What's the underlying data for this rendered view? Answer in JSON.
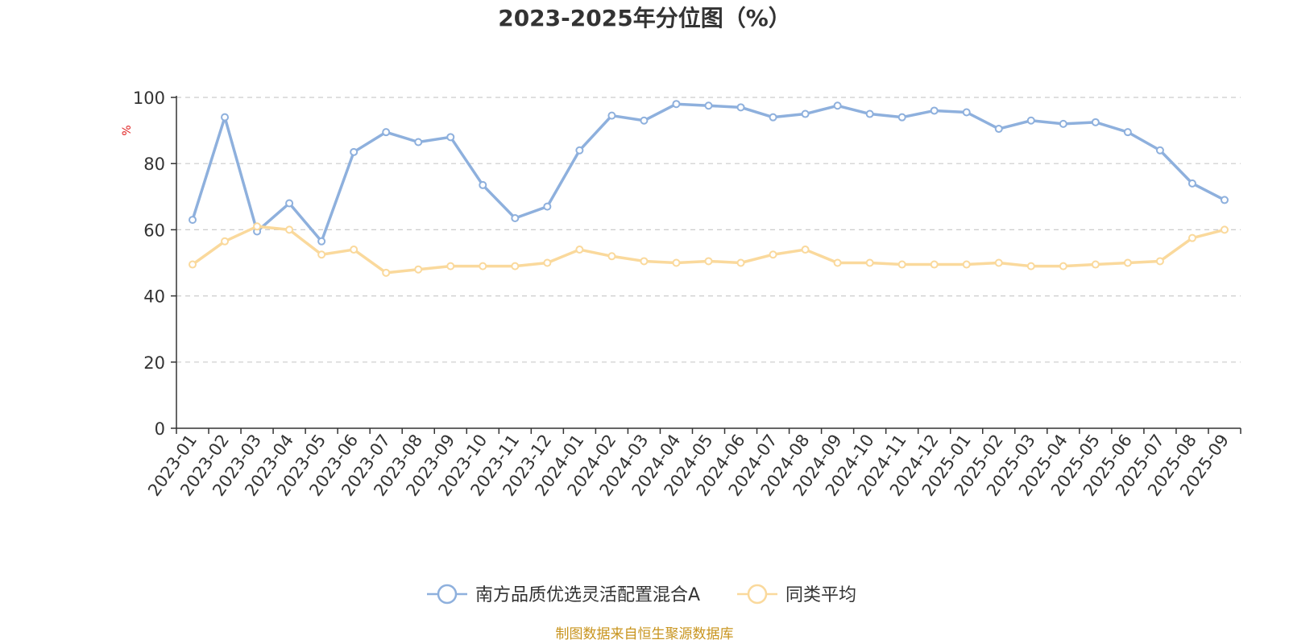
{
  "chart_data": {
    "type": "line",
    "title": "2023-2025年分位图（%）",
    "ylabel": "%",
    "ylim": [
      0,
      100
    ],
    "yticks": [
      "0",
      "20",
      "40",
      "60",
      "80",
      "100"
    ],
    "grid": true,
    "legend_position": "bottom",
    "x": [
      "2023-01",
      "2023-02",
      "2023-03",
      "2023-04",
      "2023-05",
      "2023-06",
      "2023-07",
      "2023-08",
      "2023-09",
      "2023-10",
      "2023-11",
      "2023-12",
      "2024-01",
      "2024-02",
      "2024-03",
      "2024-04",
      "2024-05",
      "2024-06",
      "2024-07",
      "2024-08",
      "2024-09",
      "2024-10",
      "2024-11",
      "2024-12",
      "2025-01",
      "2025-02",
      "2025-03",
      "2025-04",
      "2025-05",
      "2025-06",
      "2025-07",
      "2025-08",
      "2025-09"
    ],
    "series": [
      {
        "name": "南方品质优选灵活配置混合A",
        "color": "#8eb0dd",
        "values": [
          63,
          94,
          59.5,
          68,
          56.5,
          83.5,
          89.5,
          86.5,
          88,
          73.5,
          63.5,
          67,
          84,
          94.5,
          93,
          98,
          97.5,
          97,
          94,
          95,
          97.5,
          95,
          94,
          96,
          95.5,
          90.5,
          93,
          92,
          92.5,
          89.5,
          84,
          74,
          69
        ]
      },
      {
        "name": "同类平均",
        "color": "#fad99c",
        "values": [
          49.5,
          56.5,
          61,
          60,
          52.5,
          54,
          47,
          48,
          49,
          49,
          49,
          50,
          54,
          52,
          50.5,
          50,
          50.5,
          50,
          52.5,
          54,
          50,
          50,
          49.5,
          49.5,
          49.5,
          50,
          49,
          49,
          49.5,
          50,
          50.5,
          57.5,
          60
        ]
      }
    ]
  },
  "source": "制图数据来自恒生聚源数据库"
}
